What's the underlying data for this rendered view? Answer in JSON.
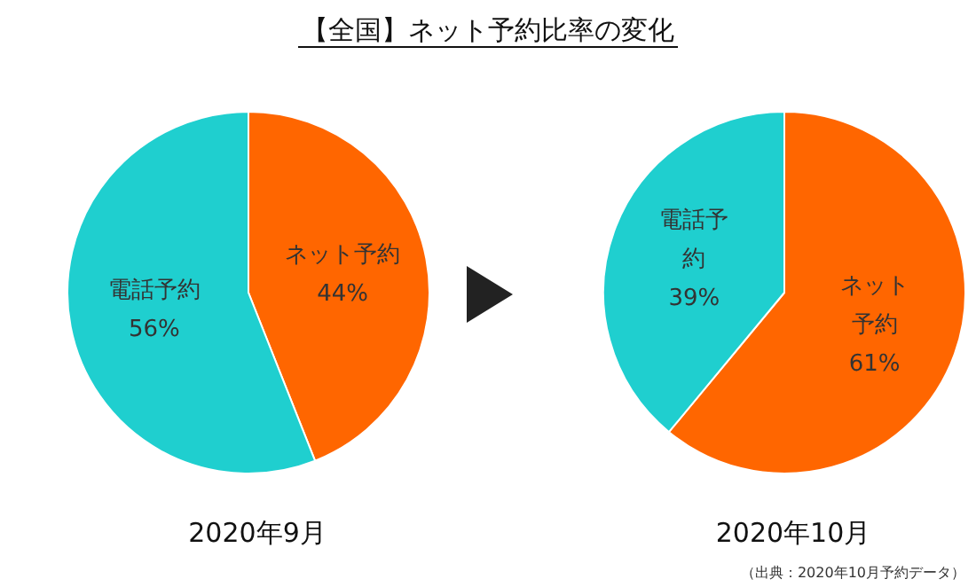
{
  "chart_data": [
    {
      "type": "pie",
      "title": "【全国】ネット予約比率の変化",
      "xlabel": "2020年9月",
      "categories": [
        "ネット予約",
        "電話予約"
      ],
      "values": [
        44,
        56
      ],
      "value_labels": [
        "44%",
        "56%"
      ],
      "colors": [
        "#ff6600",
        "#1fcfcf"
      ]
    },
    {
      "type": "pie",
      "xlabel": "2020年10月",
      "categories": [
        "ネット予約",
        "電話予約"
      ],
      "values": [
        61,
        39
      ],
      "value_labels": [
        "61%",
        "39%"
      ],
      "colors": [
        "#ff6600",
        "#1fcfcf"
      ],
      "annotations": [
        "（出典：2020年10月予約データ）"
      ]
    }
  ]
}
